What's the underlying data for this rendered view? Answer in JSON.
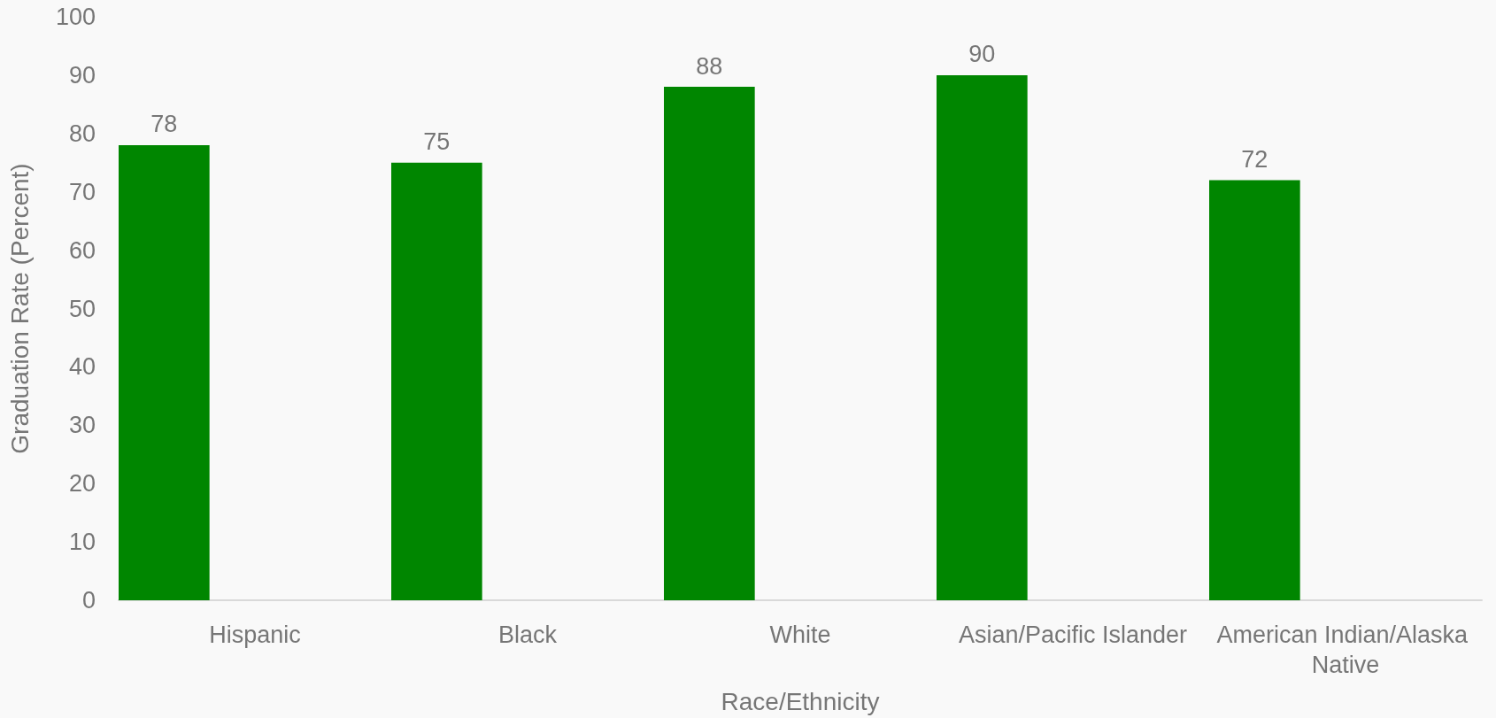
{
  "chart_data": {
    "type": "bar",
    "xlabel": "Race/Ethnicity",
    "ylabel": "Graduation Rate (Percent)",
    "categories": [
      "Hispanic",
      "Black",
      "White",
      "Asian/Pacific Islander",
      "American Indian/Alaska Native"
    ],
    "values": [
      78,
      75,
      88,
      90,
      72
    ],
    "color": "#008600",
    "ylim": [
      0,
      100
    ],
    "yticks": [
      0,
      10,
      20,
      30,
      40,
      50,
      60,
      70,
      80,
      90,
      100
    ],
    "grid": false,
    "data_labels": true
  }
}
